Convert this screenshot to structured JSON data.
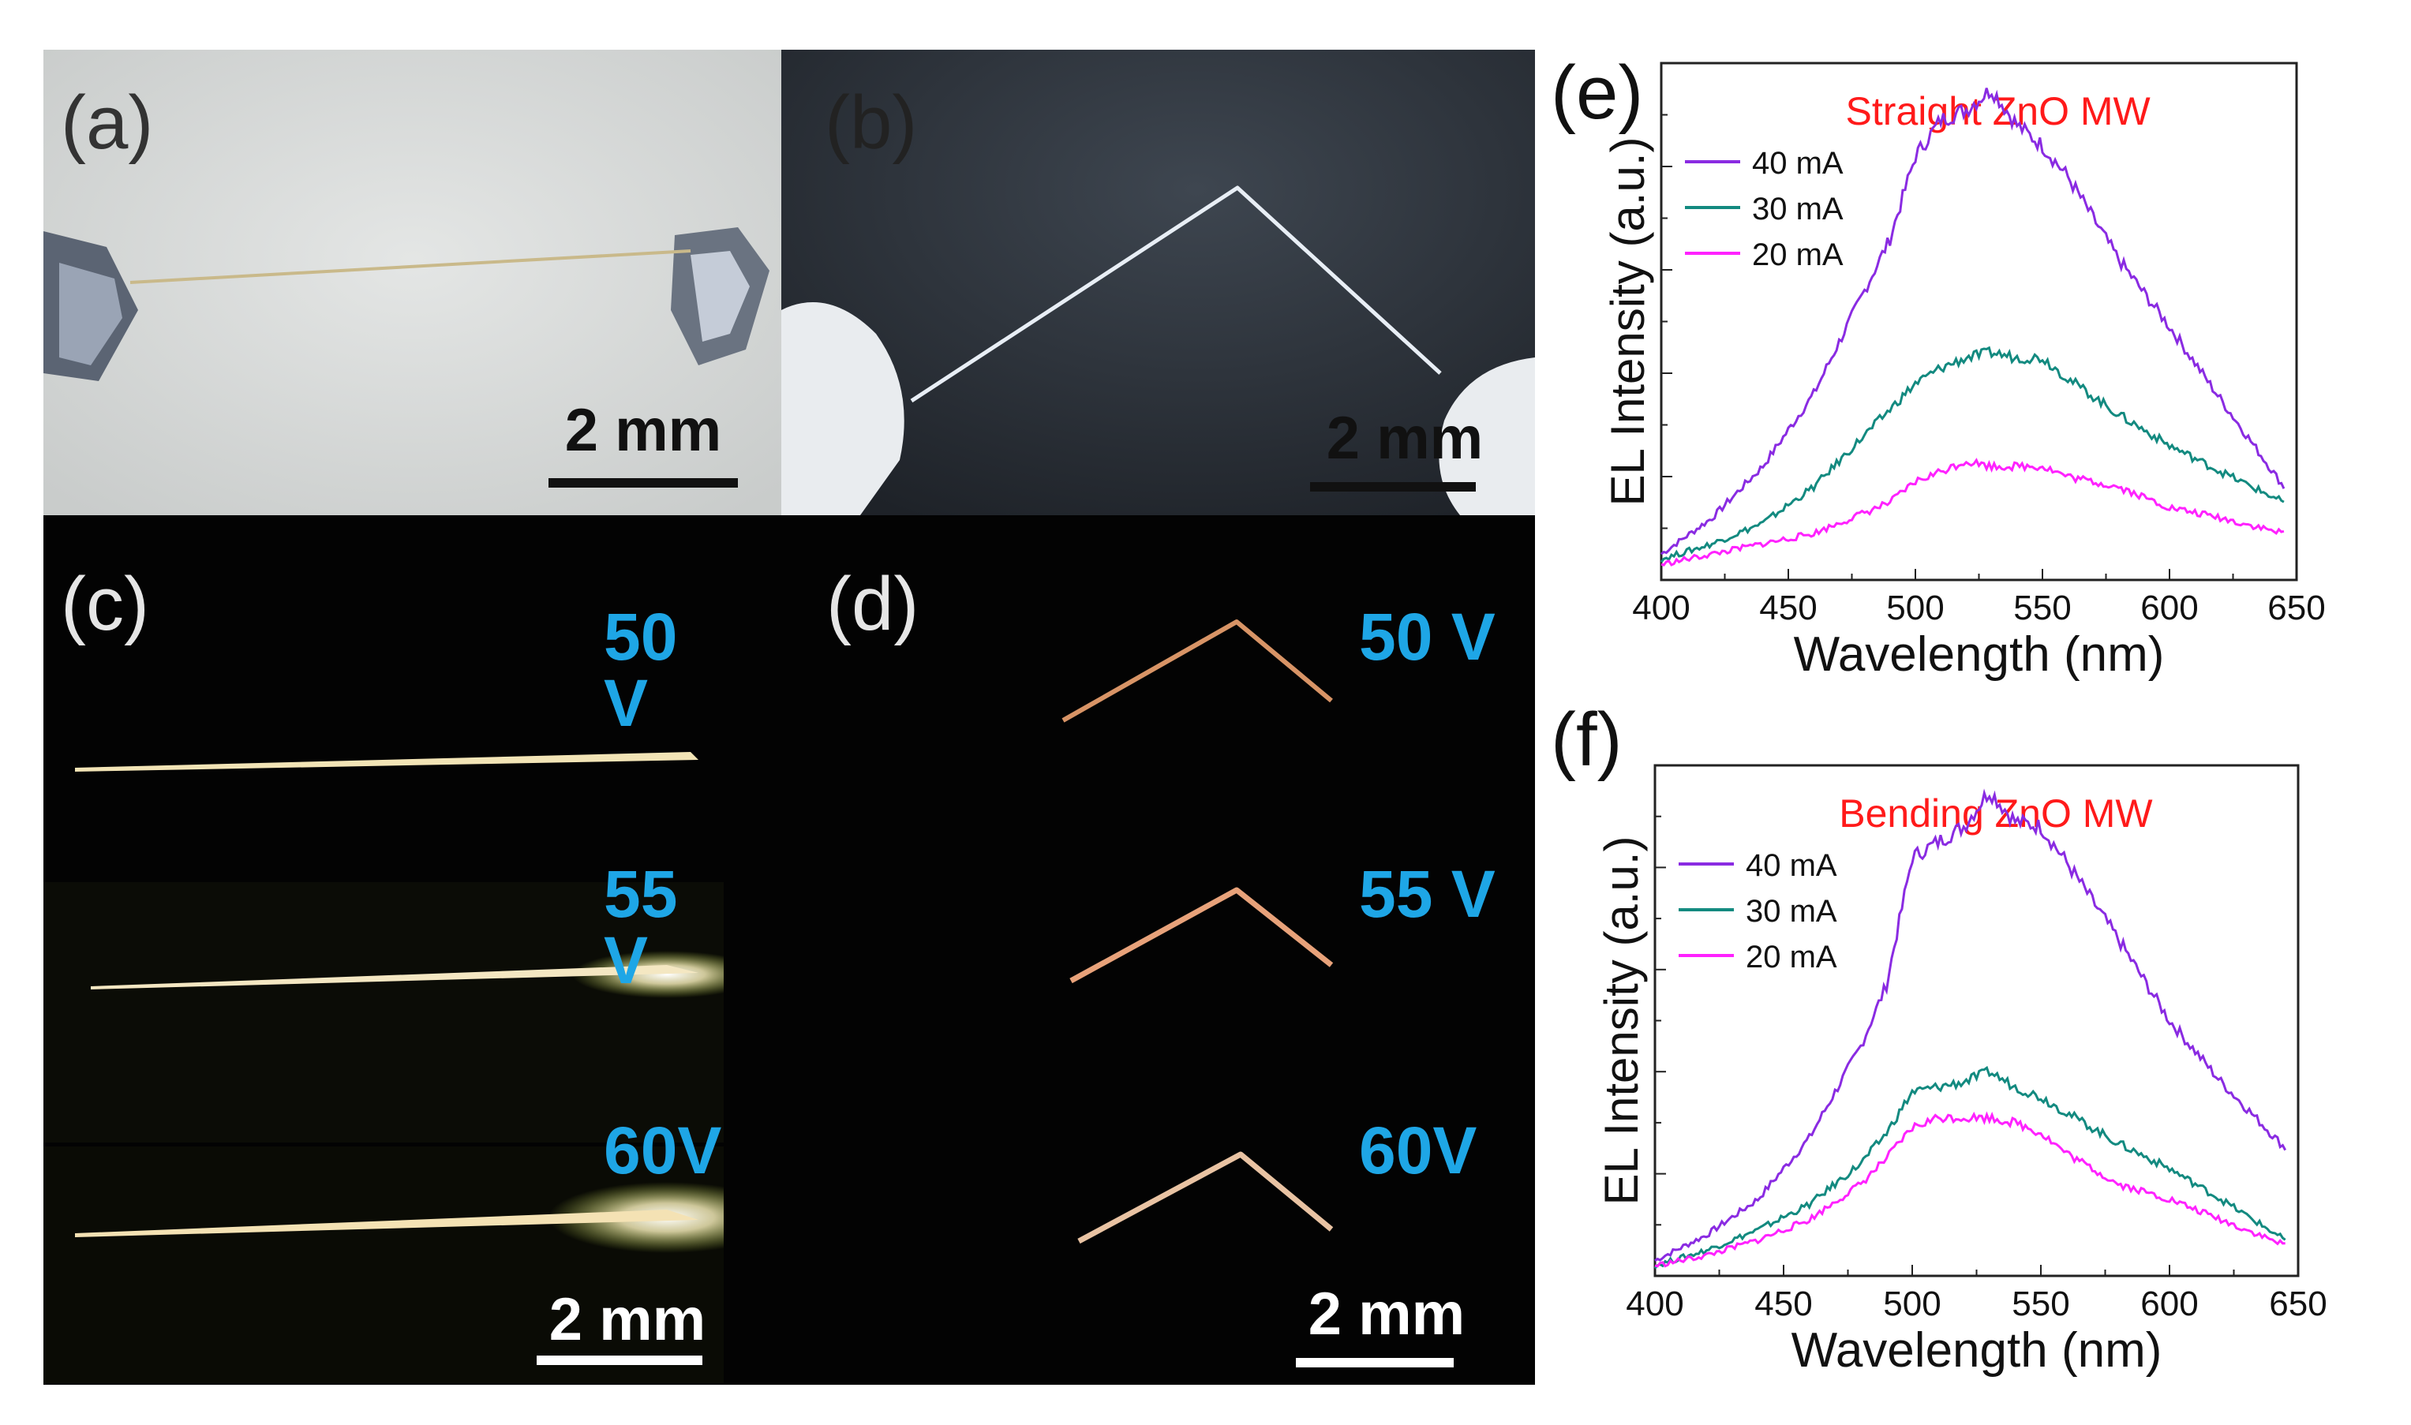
{
  "panels": {
    "a": {
      "label": "(a)",
      "scale": "2 mm"
    },
    "b": {
      "label": "(b)",
      "scale": "2 mm"
    },
    "c": {
      "label": "(c)",
      "scale": "2 mm",
      "voltages": [
        "50 V",
        "55 V",
        "60V"
      ]
    },
    "d": {
      "label": "(d)",
      "scale": "2 mm",
      "voltages": [
        "50 V",
        "55 V",
        "60V"
      ]
    },
    "e": {
      "label": "(e)"
    },
    "f": {
      "label": "(f)"
    }
  },
  "colors": {
    "s40": "#8a2be2",
    "s30": "#138a80",
    "s20": "#ff22ff",
    "title": "#ff1a1a",
    "voltage": "#1ea6e6"
  },
  "chart_data": [
    {
      "type": "line",
      "title": "Straight ZnO MW",
      "xlabel": "Wavelength (nm)",
      "ylabel": "EL Intensity (a.u.)",
      "xlim": [
        400,
        650
      ],
      "ylim": [
        0,
        1
      ],
      "xticks": [
        "400",
        "450",
        "500",
        "550",
        "600",
        "650"
      ],
      "legend": "top-left",
      "x": [
        400,
        420,
        440,
        460,
        480,
        490,
        500,
        510,
        520,
        530,
        540,
        550,
        560,
        580,
        600,
        620,
        645
      ],
      "series": [
        {
          "name": "40 mA",
          "values": [
            0.05,
            0.12,
            0.22,
            0.36,
            0.56,
            0.66,
            0.82,
            0.89,
            0.91,
            0.95,
            0.88,
            0.84,
            0.78,
            0.62,
            0.49,
            0.35,
            0.18
          ]
        },
        {
          "name": "30 mA",
          "values": [
            0.04,
            0.07,
            0.11,
            0.18,
            0.28,
            0.33,
            0.38,
            0.41,
            0.43,
            0.44,
            0.43,
            0.43,
            0.39,
            0.32,
            0.26,
            0.21,
            0.15
          ]
        },
        {
          "name": "20 mA",
          "values": [
            0.03,
            0.05,
            0.07,
            0.09,
            0.13,
            0.15,
            0.19,
            0.21,
            0.23,
            0.22,
            0.22,
            0.22,
            0.2,
            0.18,
            0.14,
            0.12,
            0.09
          ]
        }
      ]
    },
    {
      "type": "line",
      "title": "Bending ZnO MW",
      "xlabel": "Wavelength (nm)",
      "ylabel": "EL Intensity (a.u.)",
      "xlim": [
        400,
        650
      ],
      "ylim": [
        0,
        1
      ],
      "xticks": [
        "400",
        "450",
        "500",
        "550",
        "600",
        "650"
      ],
      "legend": "top-left",
      "x": [
        400,
        420,
        440,
        460,
        480,
        490,
        500,
        510,
        520,
        530,
        540,
        550,
        560,
        580,
        600,
        620,
        645
      ],
      "series": [
        {
          "name": "40 mA",
          "values": [
            0.03,
            0.08,
            0.15,
            0.27,
            0.45,
            0.57,
            0.82,
            0.85,
            0.88,
            0.95,
            0.89,
            0.88,
            0.81,
            0.66,
            0.5,
            0.38,
            0.25
          ]
        },
        {
          "name": "30 mA",
          "values": [
            0.02,
            0.05,
            0.09,
            0.14,
            0.22,
            0.28,
            0.36,
            0.37,
            0.38,
            0.4,
            0.37,
            0.35,
            0.32,
            0.26,
            0.21,
            0.15,
            0.07
          ]
        },
        {
          "name": "20 mA",
          "values": [
            0.02,
            0.04,
            0.07,
            0.11,
            0.18,
            0.23,
            0.29,
            0.31,
            0.31,
            0.31,
            0.3,
            0.28,
            0.24,
            0.18,
            0.15,
            0.11,
            0.06
          ]
        }
      ]
    }
  ]
}
